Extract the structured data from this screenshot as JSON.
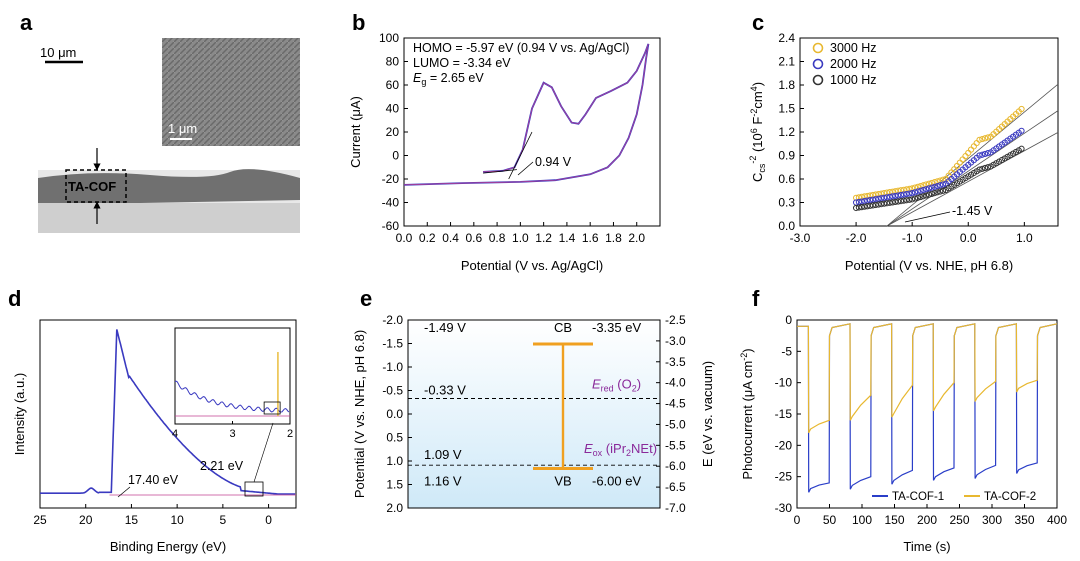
{
  "panel_labels": [
    "a",
    "b",
    "c",
    "d",
    "e",
    "f"
  ],
  "panel_a": {
    "scale_main": "10 μm",
    "scale_inset": "1 μm",
    "film_label": "TA-COF"
  },
  "chart_data": [
    {
      "id": "b",
      "type": "line",
      "xlabel": "Potential (V vs. Ag/AgCl)",
      "ylabel": "Current (μA)",
      "xlim": [
        0,
        2.2
      ],
      "ylim": [
        -60,
        100
      ],
      "xticks": [
        "0.0",
        "0.2",
        "0.4",
        "0.6",
        "0.8",
        "1.0",
        "1.2",
        "1.4",
        "1.6",
        "1.8",
        "2.0"
      ],
      "yticks": [
        "-60",
        "-40",
        "-20",
        "0",
        "20",
        "40",
        "60",
        "80",
        "100"
      ],
      "annotations": [
        "HOMO = -5.97 eV (0.94 V vs. Ag/AgCl)",
        "LUMO = -3.34 eV",
        "E",
        "g",
        " = 2.65 eV",
        "0.94 V"
      ],
      "colors": {
        "curve": "#3a3ac0",
        "overlay": "#c04090"
      },
      "forward": [
        [
          0.68,
          -14
        ],
        [
          0.85,
          -13
        ],
        [
          0.95,
          -10
        ],
        [
          1.02,
          5
        ],
        [
          1.1,
          40
        ],
        [
          1.2,
          62
        ],
        [
          1.27,
          58
        ],
        [
          1.35,
          42
        ],
        [
          1.44,
          28
        ],
        [
          1.5,
          27
        ],
        [
          1.56,
          35
        ],
        [
          1.65,
          49
        ],
        [
          1.78,
          55
        ],
        [
          1.92,
          62
        ],
        [
          2.0,
          72
        ],
        [
          2.07,
          87
        ],
        [
          2.1,
          95
        ]
      ],
      "reverse": [
        [
          2.1,
          95
        ],
        [
          2.08,
          82
        ],
        [
          2.05,
          60
        ],
        [
          2.0,
          35
        ],
        [
          1.93,
          15
        ],
        [
          1.85,
          0
        ],
        [
          1.75,
          -10
        ],
        [
          1.6,
          -16
        ],
        [
          1.3,
          -21
        ],
        [
          1.0,
          -22.5
        ],
        [
          0.5,
          -23.5
        ],
        [
          0.0,
          -25
        ]
      ],
      "tangent": [
        [
          0.68,
          -15
        ],
        [
          0.97,
          -12
        ]
      ],
      "tangent_steep": [
        [
          0.9,
          -20
        ],
        [
          1.1,
          20
        ]
      ]
    },
    {
      "id": "c",
      "type": "scatter",
      "xlabel": "Potential (V vs. NHE, pH 6.8)",
      "ylabel_main": "C",
      "ylabel_sub": "cs",
      "ylabel_sup": "-2",
      "ylabel_rest": " (10",
      "ylabel_sup2": "6",
      "ylabel_tail": " F",
      "ylabel_sup3": "-2",
      "ylabel_tail2": "cm",
      "ylabel_sup4": "4",
      "ylabel_end": ")",
      "xlim": [
        -3.0,
        1.6
      ],
      "ylim": [
        0,
        2.4
      ],
      "xticks": [
        "-3.0",
        "-2.0",
        "-1.0",
        "0.0",
        "1.0"
      ],
      "yticks": [
        "0.0",
        "0.3",
        "0.6",
        "0.9",
        "1.2",
        "1.5",
        "1.8",
        "2.1",
        "2.4"
      ],
      "annotation": "-1.45 V",
      "series": [
        {
          "name": "3000 Hz",
          "color": "#e8b830",
          "y0": 0.36,
          "yflat": 0.48,
          "ymid": 1.1,
          "yend": 1.5
        },
        {
          "name": "2000 Hz",
          "color": "#3a3ac0",
          "y0": 0.3,
          "yflat": 0.42,
          "ymid": 0.9,
          "yend": 1.22
        },
        {
          "name": "1000 Hz",
          "color": "#333333",
          "y0": 0.23,
          "yflat": 0.34,
          "ymid": 0.72,
          "yend": 0.99
        }
      ]
    },
    {
      "id": "d",
      "type": "line",
      "xlabel": "Binding Energy (eV)",
      "ylabel": "Intensity (a.u.)",
      "xlim": [
        25,
        -3
      ],
      "xticks": [
        "25",
        "20",
        "15",
        "10",
        "5",
        "0"
      ],
      "inset_xticks": [
        "4",
        "3",
        "2"
      ],
      "annotations": [
        "17.40 eV",
        "2.21 eV"
      ],
      "colors": {
        "curve": "#3a3ac0",
        "line": "#c04090",
        "inset_bar": "#e8b830"
      }
    },
    {
      "id": "e",
      "type": "diagram",
      "ylabel_left": "Potential (V vs. NHE, pH 6.8)",
      "ylabel_right": "E (eV vs. vacuum)",
      "ylim_left": [
        -2.0,
        2.0
      ],
      "ylim_right": [
        -2.5,
        -7.0
      ],
      "yticks_left": [
        "-2.0",
        "-1.5",
        "-1.0",
        "-0.5",
        "0.0",
        "0.5",
        "1.0",
        "1.5",
        "2.0"
      ],
      "yticks_right": [
        "-2.5",
        "-3.0",
        "-3.5",
        "-4.0",
        "-4.5",
        "-5.0",
        "-5.5",
        "-6.0",
        "-6.5",
        "-7.0"
      ],
      "CB_V": -1.49,
      "VB_V": 1.16,
      "Ered_V": -0.33,
      "Eox_V": 1.09,
      "labels": {
        "cb": "CB",
        "vb": "VB",
        "cb_v": "-1.49 V",
        "cb_e": "-3.35 eV",
        "vb_v": "1.16 V",
        "vb_e": "-6.00 eV",
        "red_v": "-0.33 V",
        "ox_v": "1.09 V",
        "ered_E": "E",
        "ered_sub": "red",
        "ered_tail": " (O",
        "ered_sub2": "2",
        "ered_end": ")",
        "eox_E": "E",
        "eox_sub": "ox",
        "eox_tail": " (iPr",
        "eox_sub2": "2",
        "eox_end": "NEt)"
      },
      "colors": {
        "band": "#f0a020",
        "bg": "#d4ecf8",
        "purple": "#8a2a9a"
      }
    },
    {
      "id": "f",
      "type": "line",
      "xlabel": "Time (s)",
      "ylabel": "Photocurrent (μA cm",
      "ylabel_sup": "-2",
      "ylabel_end": ")",
      "xlim": [
        0,
        400
      ],
      "ylim": [
        -30,
        0
      ],
      "xticks": [
        "0",
        "50",
        "100",
        "150",
        "200",
        "250",
        "300",
        "350",
        "400"
      ],
      "yticks": [
        "-30",
        "-25",
        "-20",
        "-15",
        "-10",
        "-5",
        "0"
      ],
      "on_times": [
        18,
        50,
        82,
        114,
        146,
        178,
        210,
        242,
        274,
        306,
        338,
        370
      ],
      "series": [
        {
          "name": "TA-COF-1",
          "color": "#2a3ec8",
          "peaks": [
            -27.5,
            -27,
            -26.2,
            -25.6,
            -25.3,
            -24.5
          ],
          "ends": [
            -26,
            -25,
            -24,
            -23.6,
            -23.2,
            -22.8
          ]
        },
        {
          "name": "TA-COF-2",
          "color": "#e8b830",
          "peaks": [
            -18,
            -16,
            -15.5,
            -14.5,
            -13,
            -11.5
          ],
          "ends": [
            -16,
            -12,
            -10.4,
            -10,
            -9.8,
            -9.6
          ]
        }
      ]
    }
  ]
}
